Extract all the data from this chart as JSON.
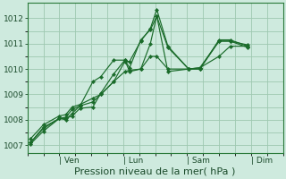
{
  "background_color": "#ceeade",
  "grid_color": "#9ec8b0",
  "line_color": "#1a6b2a",
  "marker_color": "#1a6b2a",
  "xlabel": "Pression niveau de la mer( hPa )",
  "xlabel_fontsize": 8,
  "yticks": [
    1007,
    1008,
    1009,
    1010,
    1011,
    1012
  ],
  "ylim": [
    1006.7,
    1012.6
  ],
  "xtick_labels": [
    "| Ven",
    "| Lun",
    "| Sam",
    "| Dim"
  ],
  "xtick_positions": [
    1,
    3,
    5,
    7
  ],
  "xlim": [
    0,
    8
  ],
  "series": [
    {
      "x": [
        0.1,
        0.5,
        1.0,
        1.2,
        1.4,
        1.65,
        2.05,
        2.3,
        2.7,
        3.05,
        3.2,
        3.55,
        3.85,
        4.05,
        4.4,
        5.05,
        5.4,
        6.0,
        6.35,
        6.9
      ],
      "y": [
        1007.25,
        1007.8,
        1008.15,
        1008.2,
        1008.5,
        1008.6,
        1008.85,
        1009.0,
        1009.5,
        1010.3,
        1010.3,
        1011.1,
        1011.6,
        1012.35,
        1010.9,
        1010.0,
        1010.0,
        1011.15,
        1011.15,
        1010.9
      ]
    },
    {
      "x": [
        0.1,
        0.5,
        1.0,
        1.2,
        1.4,
        1.65,
        2.05,
        2.3,
        2.7,
        3.05,
        3.2,
        3.55,
        3.85,
        4.05,
        4.4,
        5.05,
        5.4,
        6.0,
        6.35,
        6.9
      ],
      "y": [
        1007.05,
        1007.55,
        1008.05,
        1008.05,
        1008.15,
        1008.45,
        1008.5,
        1009.05,
        1009.8,
        1010.35,
        1010.05,
        1011.15,
        1011.55,
        1012.08,
        1010.85,
        1010.0,
        1010.0,
        1011.1,
        1011.1,
        1010.85
      ]
    },
    {
      "x": [
        0.1,
        0.5,
        1.0,
        1.2,
        1.4,
        1.65,
        2.05,
        2.3,
        2.7,
        3.05,
        3.2,
        3.55,
        3.85,
        4.05,
        4.4,
        5.05,
        5.4,
        6.0,
        6.35,
        6.9
      ],
      "y": [
        1007.1,
        1007.65,
        1008.05,
        1008.0,
        1008.25,
        1008.55,
        1009.5,
        1009.7,
        1010.35,
        1010.35,
        1009.9,
        1010.0,
        1011.0,
        1012.1,
        1009.9,
        1010.0,
        1010.05,
        1011.1,
        1011.1,
        1010.95
      ]
    },
    {
      "x": [
        0.1,
        0.5,
        1.0,
        1.2,
        1.4,
        1.65,
        2.05,
        2.3,
        2.7,
        3.05,
        3.2,
        3.55,
        3.85,
        4.05,
        4.4,
        5.05,
        5.4,
        6.0,
        6.35,
        6.9
      ],
      "y": [
        1007.1,
        1007.7,
        1008.05,
        1008.1,
        1008.4,
        1008.55,
        1008.7,
        1009.0,
        1009.5,
        1009.9,
        1009.95,
        1010.0,
        1010.5,
        1010.5,
        1010.0,
        1010.0,
        1010.05,
        1010.5,
        1010.9,
        1010.9
      ]
    }
  ]
}
